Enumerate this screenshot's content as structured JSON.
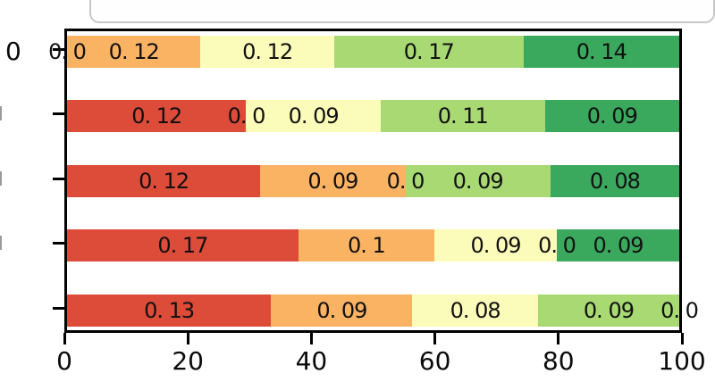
{
  "chart_data": {
    "type": "bar",
    "orientation": "horizontal",
    "stacked": true,
    "normalization": "each row of values is drawn normalized to a 0-100 axis",
    "title": "",
    "xlabel": "",
    "ylabel": "",
    "xlim": [
      0,
      100
    ],
    "x_ticks": [
      0,
      20,
      40,
      60,
      80,
      100
    ],
    "x_tick_labels": [
      "0",
      "20",
      "40",
      "60",
      "80",
      "100"
    ],
    "y_tick_labels_visible": [
      "0",
      "",
      "",
      "",
      ""
    ],
    "grid": false,
    "legend_position": "none (cropped panel at top of image)",
    "segment_colors": [
      "#DD4B39",
      "#FAB263",
      "#FCFCBA",
      "#A8D973",
      "#3AA95E"
    ],
    "rows": [
      {
        "values": [
          0,
          0.12,
          0.12,
          0.17,
          0.14
        ],
        "labels": [
          "0. 0",
          "0. 12",
          "0. 12",
          "0. 17",
          "0. 14"
        ]
      },
      {
        "values": [
          0.12,
          0,
          0.09,
          0.11,
          0.09
        ],
        "labels": [
          "0. 12",
          "0. 0",
          "0. 09",
          "0. 11",
          "0. 09"
        ]
      },
      {
        "values": [
          0.12,
          0.09,
          0,
          0.09,
          0.08
        ],
        "labels": [
          "0. 12",
          "0. 09",
          "0. 0",
          "0. 09",
          "0. 08"
        ]
      },
      {
        "values": [
          0.17,
          0.1,
          0.09,
          0,
          0.09
        ],
        "labels": [
          "0. 17",
          "0. 1",
          "0. 09",
          "0. 0",
          "0. 09"
        ]
      },
      {
        "values": [
          0.13,
          0.09,
          0.08,
          0.09,
          0
        ],
        "labels": [
          "0. 13",
          "0. 09",
          "0. 08",
          "0. 09",
          "0. 0"
        ]
      }
    ]
  }
}
